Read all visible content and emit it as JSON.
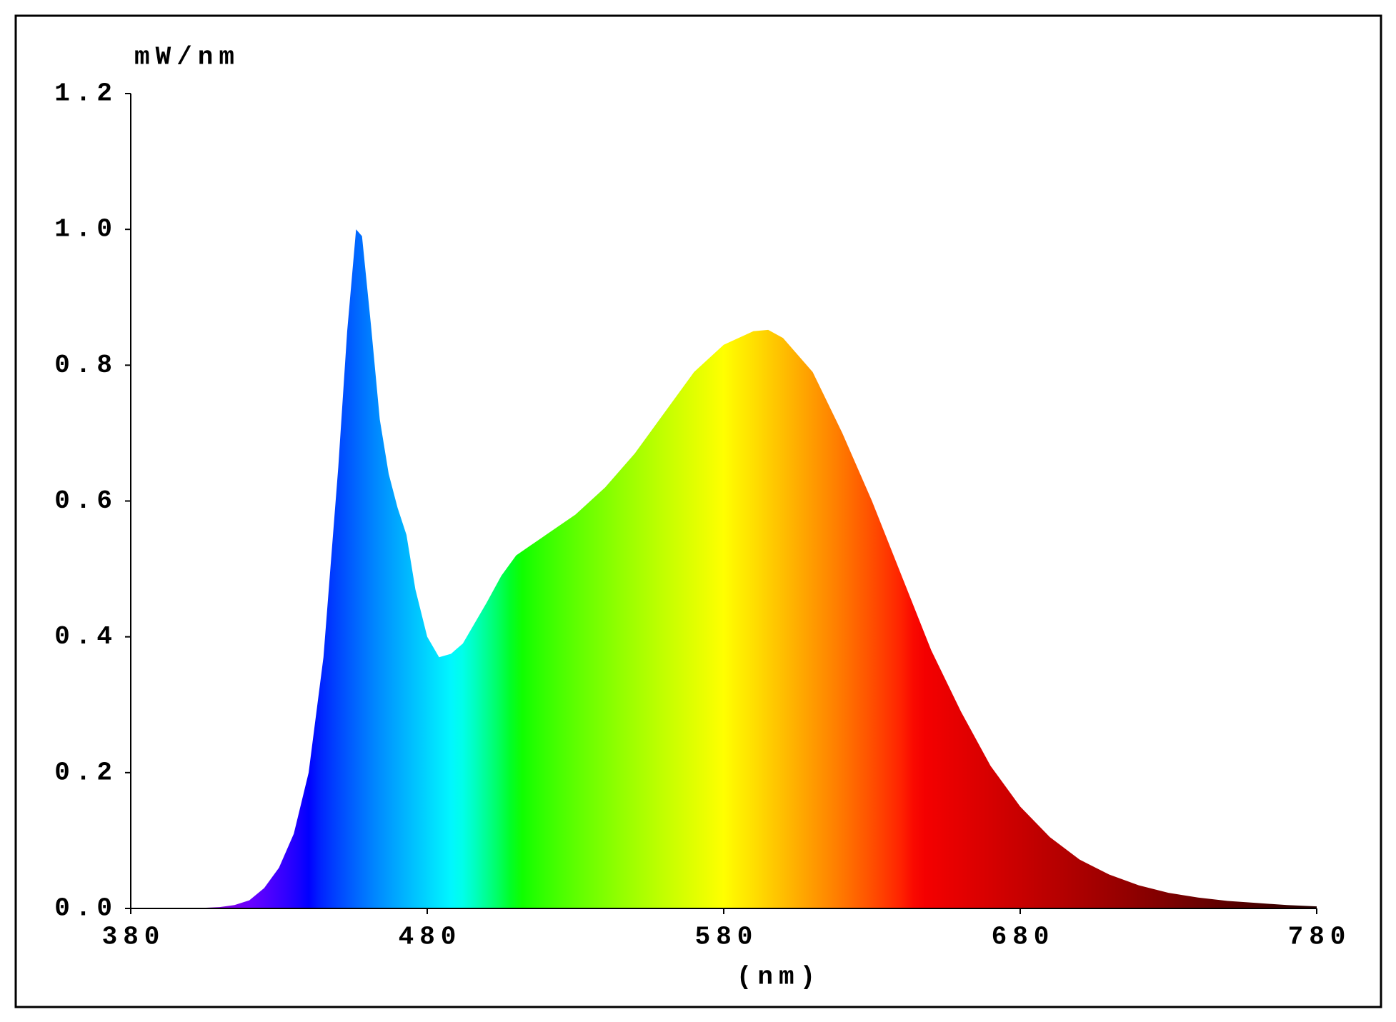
{
  "chart_data": {
    "type": "area",
    "ylabel": "mW/nm",
    "xlabel": "(nm)",
    "x": [
      380,
      400,
      410,
      415,
      420,
      425,
      430,
      435,
      440,
      445,
      450,
      453,
      456,
      458,
      461,
      464,
      467,
      470,
      473,
      476,
      480,
      484,
      488,
      492,
      496,
      500,
      505,
      510,
      515,
      520,
      530,
      540,
      550,
      560,
      570,
      580,
      590,
      595,
      600,
      610,
      620,
      630,
      640,
      650,
      660,
      670,
      680,
      690,
      700,
      710,
      720,
      730,
      740,
      750,
      760,
      770,
      780
    ],
    "values": [
      0,
      0,
      0.002,
      0.005,
      0.012,
      0.03,
      0.06,
      0.11,
      0.2,
      0.37,
      0.65,
      0.85,
      1.0,
      0.99,
      0.86,
      0.72,
      0.64,
      0.59,
      0.55,
      0.47,
      0.4,
      0.37,
      0.375,
      0.39,
      0.42,
      0.45,
      0.49,
      0.52,
      0.535,
      0.55,
      0.58,
      0.62,
      0.67,
      0.73,
      0.79,
      0.83,
      0.85,
      0.852,
      0.84,
      0.79,
      0.7,
      0.6,
      0.49,
      0.38,
      0.29,
      0.21,
      0.15,
      0.105,
      0.072,
      0.05,
      0.034,
      0.023,
      0.016,
      0.011,
      0.008,
      0.005,
      0.003
    ],
    "xlim": [
      380,
      780
    ],
    "xticks": [
      380,
      480,
      580,
      680,
      780
    ],
    "ylim": [
      0,
      1.2
    ],
    "yticks": [
      {
        "value": 0,
        "label": "0.0"
      },
      0.2,
      0.4,
      0.6,
      0.8,
      {
        "value": 1,
        "label": "1.0"
      },
      1.2
    ],
    "grid": false
  }
}
